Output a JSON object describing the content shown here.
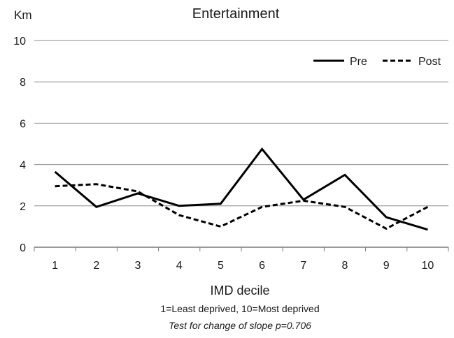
{
  "chart_data": {
    "type": "line",
    "title": "Entertainment",
    "ylabel": "Km",
    "xlabel": "IMD decile",
    "subtitle": "1=Least deprived, 10=Most deprived",
    "note": "Test for change of slope p=0.706",
    "x": [
      1,
      2,
      3,
      4,
      5,
      6,
      7,
      8,
      9,
      10
    ],
    "ylim": [
      0,
      10
    ],
    "yticks": [
      0,
      2,
      4,
      6,
      8,
      10
    ],
    "grid": "horizontal",
    "legend_position": "top-right",
    "series": [
      {
        "name": "Pre",
        "style": "solid",
        "color": "#000000",
        "values": [
          3.65,
          1.95,
          2.6,
          2.0,
          2.1,
          4.75,
          2.3,
          3.5,
          1.45,
          0.85
        ]
      },
      {
        "name": "Post",
        "style": "dashed",
        "color": "#000000",
        "values": [
          2.95,
          3.05,
          2.7,
          1.55,
          1.0,
          1.95,
          2.25,
          1.95,
          0.9,
          1.95
        ]
      }
    ]
  }
}
